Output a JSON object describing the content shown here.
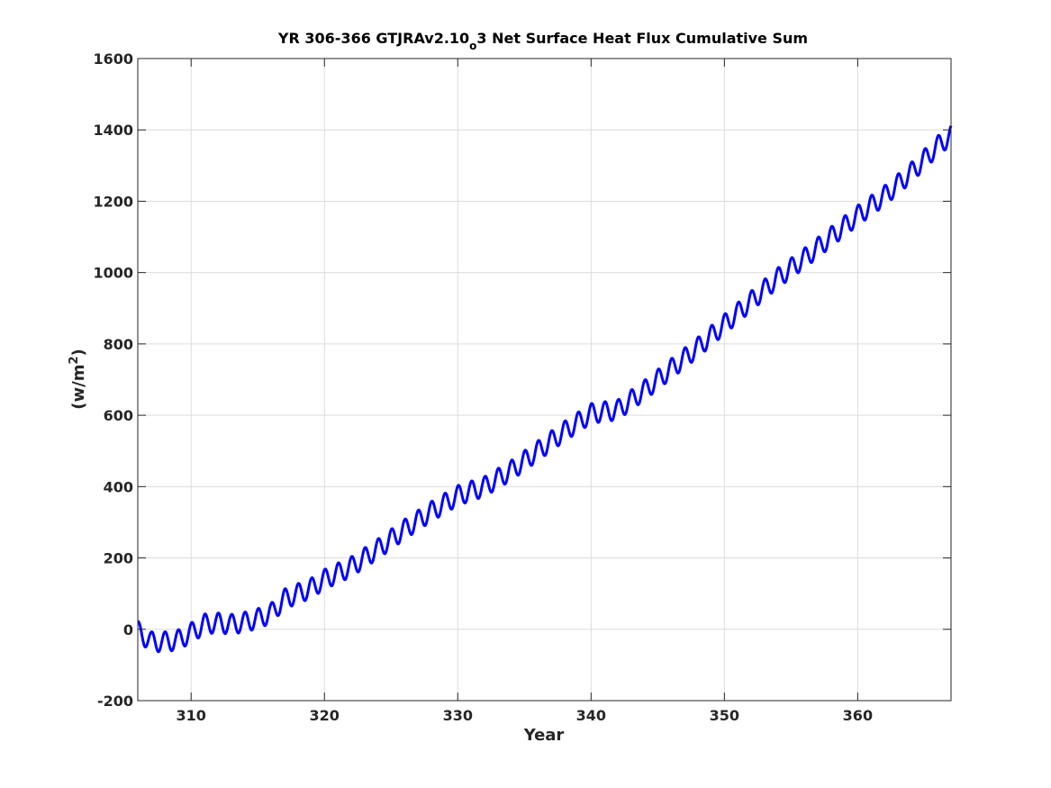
{
  "chart_data": {
    "type": "line",
    "title": {
      "prefix": "YR 306-366 GTJRAv2.10",
      "subscript": "o",
      "suffix": "3 Net Surface Heat Flux  Cumulative Sum"
    },
    "xlabel": "Year",
    "ylabel": {
      "base": "(w/m",
      "superscript": "2",
      "close": ")"
    },
    "xlim": [
      306,
      367
    ],
    "ylim": [
      -200,
      1600
    ],
    "xticks": [
      310,
      320,
      330,
      340,
      350,
      360
    ],
    "yticks": [
      -200,
      0,
      200,
      400,
      600,
      800,
      1000,
      1200,
      1400,
      1600
    ],
    "grid": true,
    "series": [
      {
        "color": "#0000ff",
        "annual_cycle_amplitude_wm2": 28,
        "trend": {
          "x": [
            306,
            307,
            308,
            309,
            310,
            311,
            312,
            313,
            314,
            315,
            316,
            317,
            318,
            319,
            320,
            322,
            324,
            326,
            328,
            330,
            332,
            334,
            336,
            338,
            340,
            342,
            344,
            346,
            348,
            350,
            352,
            354,
            356,
            358,
            360,
            362,
            364,
            366,
            367
          ],
          "y": [
            -5,
            -35,
            -35,
            -30,
            -10,
            15,
            18,
            14,
            20,
            30,
            45,
            85,
            100,
            115,
            140,
            175,
            225,
            280,
            330,
            375,
            400,
            445,
            500,
            555,
            605,
            615,
            670,
            730,
            790,
            855,
            920,
            985,
            1040,
            1100,
            1160,
            1215,
            1280,
            1355,
            1385
          ]
        }
      }
    ]
  }
}
